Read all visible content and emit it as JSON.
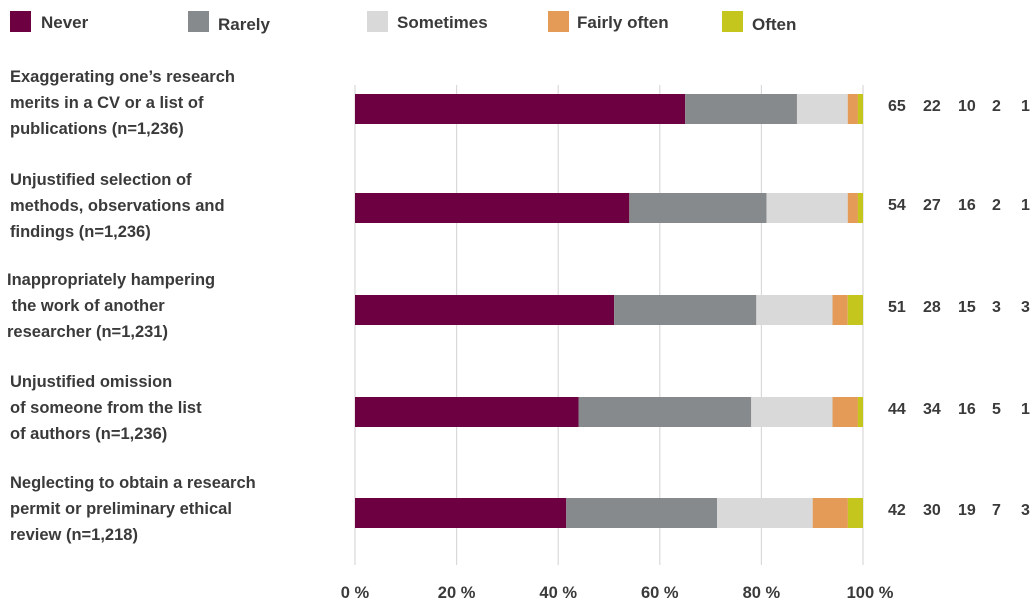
{
  "chart_data": {
    "type": "bar",
    "orientation": "horizontal",
    "stacked": true,
    "grid": true,
    "legend_position": "top",
    "xlim": [
      0,
      100
    ],
    "x_ticks": [
      "0 %",
      "20 %",
      "40 %",
      "60 %",
      "80 %",
      "100 %"
    ],
    "categories": [
      [
        "Exaggerating one’s research",
        "merits in a CV or a list of",
        "publications (n=1,236)"
      ],
      [
        "Unjustified selection of",
        "methods, observations and",
        "findings (n=1,236)"
      ],
      [
        "Inappropriately hampering",
        " the work of another",
        "researcher (n=1,231)"
      ],
      [
        "Unjustified omission",
        "of someone from the list",
        "of authors (n=1,236)"
      ],
      [
        "Neglecting to obtain a research",
        "permit or preliminary ethical",
        "review (n=1,218)"
      ]
    ],
    "series": [
      {
        "name": "Never",
        "color": "#6d0041",
        "values": [
          65,
          54,
          51,
          44,
          42
        ]
      },
      {
        "name": "Rarely",
        "color": "#878a8c",
        "values": [
          22,
          27,
          28,
          34,
          30
        ]
      },
      {
        "name": "Sometimes",
        "color": "#d9d9d9",
        "values": [
          10,
          16,
          15,
          16,
          19
        ]
      },
      {
        "name": "Fairly often",
        "color": "#e39b57",
        "values": [
          2,
          2,
          3,
          5,
          7
        ]
      },
      {
        "name": "Often",
        "color": "#c4c51d",
        "values": [
          1,
          1,
          3,
          1,
          3
        ]
      }
    ],
    "value_labels": [
      [
        "65",
        "22",
        "10",
        "2",
        "1"
      ],
      [
        "54",
        "27",
        "16",
        "2",
        "1"
      ],
      [
        "51",
        "28",
        "15",
        "3",
        "3"
      ],
      [
        "44",
        "34",
        "16",
        "5",
        "1"
      ],
      [
        "42",
        "30",
        "19",
        "7",
        "3"
      ]
    ],
    "gridline_color": "#d9d9d9"
  }
}
